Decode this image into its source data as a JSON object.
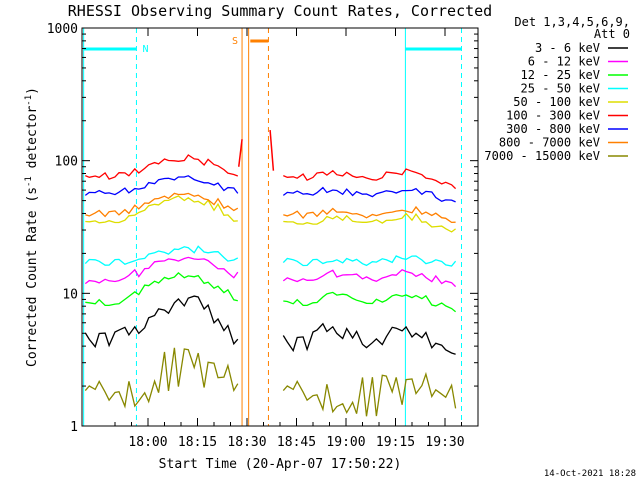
{
  "chart_data": {
    "type": "line",
    "title": "RHESSI Observing Summary Count Rates, Corrected",
    "xlabel": "Start Time (20-Apr-07 17:50:22)",
    "ylabel_main": "Corrected Count Rate (s",
    "ylabel_sup1": "-1",
    "ylabel_mid": " detector",
    "ylabel_sup2": "-1",
    "ylabel_end": ")",
    "x_range_min": [
      -10,
      110
    ],
    "y_scale": "log",
    "ylim": [
      1,
      1000
    ],
    "x_ticks": [
      {
        "min": 10,
        "label": "18:00"
      },
      {
        "min": 25,
        "label": "18:15"
      },
      {
        "min": 40,
        "label": "18:30"
      },
      {
        "min": 55,
        "label": "18:45"
      },
      {
        "min": 70,
        "label": "19:00"
      },
      {
        "min": 85,
        "label": "19:15"
      },
      {
        "min": 100,
        "label": "19:30"
      }
    ],
    "y_ticks": [
      {
        "value": 1,
        "label": "1"
      },
      {
        "value": 10,
        "label": "10"
      },
      {
        "value": 100,
        "label": "100"
      },
      {
        "value": 1000,
        "label": "1000"
      }
    ],
    "legend": {
      "position": "right",
      "header1": "Det 1,3,4,5,6,9,",
      "header2": "Att 0"
    },
    "series": [
      {
        "name": "3 - 6 keV",
        "color": "#000000",
        "values": [
          4.5,
          4.5,
          4.6,
          4.7,
          4.9,
          5.2,
          5.9,
          6.8,
          7.8,
          8.6,
          9.0,
          8.6,
          7.6,
          6.4,
          5.2,
          4.4,
          null,
          null,
          null,
          null,
          4.3,
          4.2,
          4.3,
          4.7,
          5.2,
          5.2,
          4.9,
          4.6,
          4.3,
          4.3,
          4.6,
          5.0,
          5.2,
          5.0,
          4.6,
          4.1,
          3.8,
          3.6
        ]
      },
      {
        "name": "6 - 12 keV",
        "color": "#ff00ff",
        "values": [
          12.5,
          12.5,
          12.7,
          13,
          13.5,
          14.2,
          15.3,
          16.5,
          17.5,
          18.3,
          18.8,
          18.4,
          17.3,
          16,
          14.7,
          13.8,
          null,
          null,
          null,
          null,
          13.1,
          12.8,
          12.8,
          13.3,
          14,
          14.1,
          13.7,
          13.2,
          12.8,
          12.9,
          13.4,
          14,
          14.3,
          14,
          13.5,
          12.9,
          12.3,
          11.8
        ]
      },
      {
        "name": "12 - 25 keV",
        "color": "#00ff00",
        "values": [
          8.5,
          8.5,
          8.6,
          8.8,
          9.3,
          9.9,
          10.9,
          12,
          13,
          13.6,
          13.9,
          13.5,
          12.5,
          11.3,
          10.1,
          9.3,
          null,
          null,
          null,
          null,
          8.7,
          8.5,
          8.6,
          9,
          9.7,
          9.8,
          9.3,
          8.9,
          8.5,
          8.6,
          9.1,
          9.7,
          10,
          9.6,
          9.1,
          8.5,
          8,
          7.6
        ]
      },
      {
        "name": "25 - 50 keV",
        "color": "#00ffff",
        "values": [
          17,
          17,
          17.1,
          17.3,
          17.6,
          18.1,
          19,
          20,
          20.8,
          21.4,
          21.7,
          21.4,
          20.6,
          19.6,
          18.6,
          17.9,
          null,
          null,
          null,
          null,
          17.3,
          17,
          17,
          17.3,
          17.8,
          17.9,
          17.6,
          17.3,
          17.1,
          17.2,
          17.6,
          18.1,
          18.4,
          18.2,
          17.8,
          17.3,
          16.9,
          16.6
        ]
      },
      {
        "name": "50 - 100 keV",
        "color": "#dddd00",
        "values": [
          35,
          35,
          35.4,
          36,
          37.5,
          40,
          43.5,
          47,
          50,
          52,
          53,
          51.5,
          48.5,
          44.5,
          40,
          37,
          null,
          null,
          null,
          null,
          35,
          34.4,
          34.2,
          35,
          37,
          37.5,
          36.5,
          35,
          34.2,
          34.4,
          35.8,
          37.5,
          38.5,
          37.5,
          35.5,
          33.5,
          31.5,
          30
        ]
      },
      {
        "name": "100 - 300 keV",
        "color": "#ff0000",
        "values": [
          76,
          76,
          76.5,
          77.5,
          80,
          84,
          90,
          96,
          101,
          104,
          105,
          103,
          98,
          91,
          84,
          79,
          null,
          null,
          null,
          null,
          76,
          75,
          75,
          77,
          81,
          81.5,
          79,
          76,
          74.5,
          75,
          78,
          81,
          83,
          81,
          77,
          73,
          68,
          64
        ]
      },
      {
        "name": "300 - 800 keV",
        "color": "#0000ff",
        "values": [
          57,
          57,
          57.3,
          58,
          59.5,
          62,
          66,
          70,
          73.5,
          75.5,
          76,
          74.5,
          71,
          66.5,
          62,
          59,
          null,
          null,
          null,
          null,
          57,
          56.5,
          56.5,
          57.5,
          60,
          60.5,
          59,
          57,
          56,
          56.5,
          58.5,
          60.5,
          62,
          60.5,
          58,
          55,
          51.5,
          48
        ]
      },
      {
        "name": "800 - 7000 keV",
        "color": "#ff8000",
        "values": [
          40,
          40,
          40.4,
          41,
          42.5,
          45,
          48.5,
          52,
          55,
          57,
          57.5,
          56,
          53,
          49,
          45,
          42,
          null,
          null,
          null,
          null,
          40,
          39.5,
          39.3,
          40,
          42,
          42.5,
          41.5,
          40,
          39.3,
          39.5,
          41,
          42.5,
          43.5,
          42.5,
          40.5,
          38.5,
          35.5,
          33
        ]
      },
      {
        "name": "7000 - 15000 keV",
        "color": "#888800",
        "values": [
          1.8,
          1.8,
          1.8,
          1.9,
          2,
          2.1,
          2.3,
          2.6,
          2.8,
          3,
          3,
          2.9,
          2.7,
          2.5,
          2.2,
          2,
          null,
          null,
          null,
          null,
          1.8,
          1.8,
          1.8,
          1.8,
          1.9,
          1.9,
          1.9,
          1.8,
          1.8,
          1.8,
          1.9,
          1.9,
          2,
          1.9,
          1.9,
          1.8,
          1.7,
          1.7
        ]
      }
    ],
    "series_x_start_min": -9,
    "series_x_step_min": 3,
    "peak_lines": [
      {
        "series": 5,
        "min": 37.5,
        "from": 90,
        "to": 145
      },
      {
        "series": 5,
        "min": 47,
        "from": 170,
        "to": 84
      }
    ],
    "night_markers": [
      {
        "min": -9.5,
        "label": ""
      },
      {
        "min": 88,
        "label": ""
      }
    ],
    "day_markers": [
      {
        "min": 6.5
      },
      {
        "min": 105
      }
    ],
    "annotations": {
      "night_label": "N",
      "saa_label": "S",
      "saa_start_min": 38.5,
      "saa_end_min": 40.5,
      "gap_start_min": 39.5,
      "gap_end_min": 46.5,
      "cyan_bars": [
        {
          "from": -9.5,
          "to": 6.5
        },
        {
          "from": 88,
          "to": 105
        }
      ],
      "saa_bar": {
        "from": 41,
        "to": 46.5
      }
    },
    "footer_date": "14-Oct-2021 18:28"
  },
  "colors": {
    "night": "#00ffff",
    "saa": "#ff8000"
  }
}
